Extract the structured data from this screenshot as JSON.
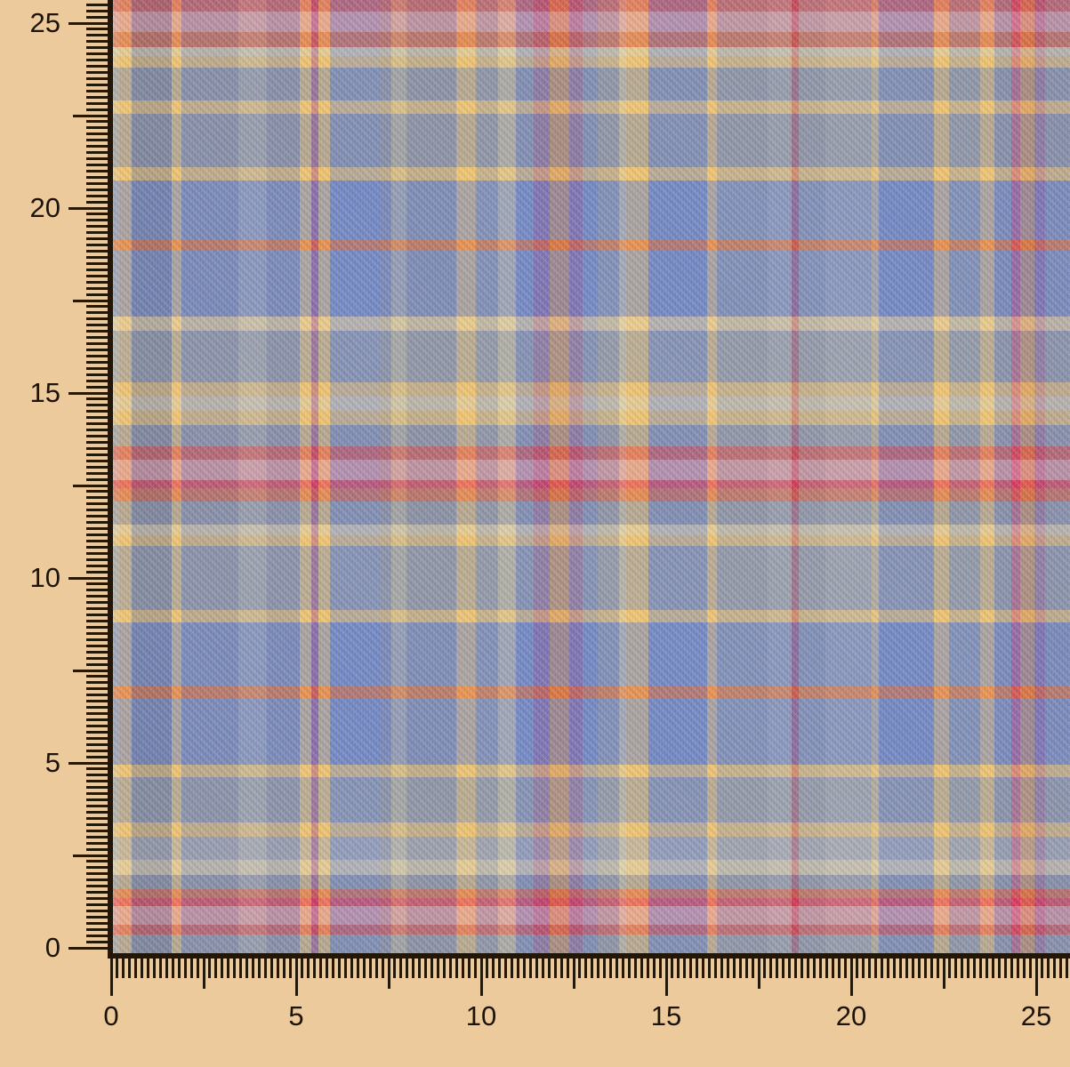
{
  "scene": {
    "background_color": "#ecca9b",
    "ruler_line_color": "#221608",
    "ruler_tick_color": "#241807",
    "ruler_label_color": "#1c1408"
  },
  "rulers": {
    "left": {
      "labels": [
        "25",
        "20",
        "15",
        "10",
        "5",
        "0"
      ]
    },
    "bottom": {
      "labels": [
        "0",
        "5",
        "10",
        "15",
        "20",
        "25"
      ]
    }
  },
  "fabric": {
    "description": "blue, grey, yellow, red and purple madras plaid fabric swatch",
    "palette": {
      "cream": "#ded0ac",
      "creamGrey": "#bcb7a2",
      "creamYellow": "#e6cfa0",
      "paleCream": "#d3c8a4",
      "paleYellow": "#d9c48f",
      "yellow": "#edc372",
      "orange": "#cf8450",
      "orangeLine": "#e26a36",
      "orangeRed": "#dd5f3c",
      "red": "#d94b4b",
      "redBright": "#ea3247",
      "pink": "#e3949e",
      "crimson": "#ae4468",
      "magenta": "#a44a87",
      "magentaBright": "#c23e7c",
      "purple": "#8a5a9e",
      "blue": "#7388c4",
      "blueGrey": "#7f8ab0",
      "slateBlue": "#8089ab",
      "slateDark": "#6e7694",
      "slate": "#8b92a6",
      "slateGrey": "#8a91a4",
      "grey": "#9299a9",
      "greyPale": "#a8abb4",
      "paleGrey": "#a5aab6"
    },
    "warp_stripes": [
      [
        "cream",
        7
      ],
      [
        "yellow",
        14
      ],
      [
        "slateDark",
        45
      ],
      [
        "yellow",
        11
      ],
      [
        "slateBlue",
        64
      ],
      [
        "paleGrey",
        32
      ],
      [
        "slateBlue",
        37
      ],
      [
        "yellow",
        13
      ],
      [
        "magenta",
        8
      ],
      [
        "yellow",
        13
      ],
      [
        "blue",
        56
      ],
      [
        "slateBlue",
        13
      ],
      [
        "creamGrey",
        17
      ],
      [
        "slateGrey",
        56
      ],
      [
        "yellow",
        22
      ],
      [
        "grey",
        25
      ],
      [
        "paleCream",
        20
      ],
      [
        "blue",
        20
      ],
      [
        "purple",
        18
      ],
      [
        "orange",
        22
      ],
      [
        "purple",
        15
      ],
      [
        "blue",
        17
      ],
      [
        "grey",
        24
      ],
      [
        "cream",
        8
      ],
      [
        "yellow",
        25
      ],
      [
        "blue",
        66
      ],
      [
        "yellow",
        11
      ],
      [
        "grey",
        57
      ],
      [
        "paleGrey",
        27
      ],
      [
        "crimson",
        8
      ],
      [
        "grey",
        30
      ],
      [
        "paleGrey",
        52
      ],
      [
        "paleYellow",
        8
      ],
      [
        "blue",
        62
      ],
      [
        "yellow",
        17
      ],
      [
        "grey",
        35
      ],
      [
        "yellow",
        16
      ],
      [
        "blueGrey",
        19
      ],
      [
        "magentaBright",
        10
      ],
      [
        "orange",
        16
      ],
      [
        "purple",
        12
      ],
      [
        "blueGrey",
        28
      ]
    ],
    "weft_stripes": [
      [
        "red",
        13
      ],
      [
        "pink",
        23
      ],
      [
        "orangeRed",
        17
      ],
      [
        "cream",
        10
      ],
      [
        "yellow",
        13
      ],
      [
        "slate",
        37
      ],
      [
        "yellow",
        15
      ],
      [
        "slate",
        60
      ],
      [
        "yellow",
        15
      ],
      [
        "blue",
        67
      ],
      [
        "orangeLine",
        12
      ],
      [
        "blue",
        74
      ],
      [
        "creamYellow",
        16
      ],
      [
        "grey",
        58
      ],
      [
        "yellow",
        16
      ],
      [
        "cream",
        16
      ],
      [
        "yellow",
        16
      ],
      [
        "slate",
        24
      ],
      [
        "red",
        15
      ],
      [
        "pink",
        23
      ],
      [
        "redBright",
        9
      ],
      [
        "orangeRed",
        15
      ],
      [
        "slate",
        26
      ],
      [
        "cream",
        12
      ],
      [
        "yellow",
        12
      ],
      [
        "grey",
        72
      ],
      [
        "yellow",
        14
      ],
      [
        "blue",
        71
      ],
      [
        "orangeLine",
        14
      ],
      [
        "blue",
        75
      ],
      [
        "yellow",
        14
      ],
      [
        "grey",
        51
      ],
      [
        "yellow",
        16
      ],
      [
        "greyPale",
        26
      ],
      [
        "cream",
        17
      ],
      [
        "slate",
        16
      ],
      [
        "orangeRed",
        10
      ],
      [
        "redBright",
        9
      ],
      [
        "pink",
        21
      ],
      [
        "red",
        11
      ],
      [
        "slate",
        21
      ]
    ]
  }
}
